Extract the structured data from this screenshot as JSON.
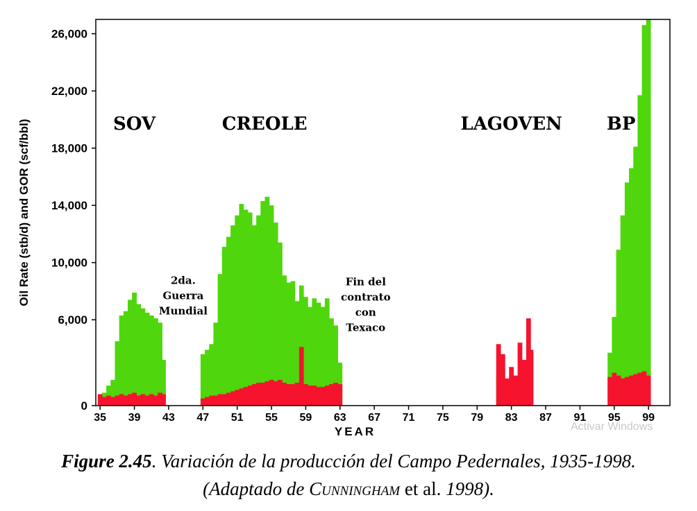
{
  "chart_data": {
    "type": "bar",
    "ylabel": "Oil Rate (stb/d) and GOR (scf/bbl)",
    "xlabel": "YEAR",
    "ylim": [
      0,
      27000
    ],
    "xlim": [
      34.5,
      101.5
    ],
    "yticks": [
      0,
      6000,
      10000,
      14000,
      18000,
      22000,
      26000
    ],
    "ytick_labels": [
      "0",
      "6,000",
      "10,000",
      "14,000",
      "18,000",
      "22,000",
      "26,000"
    ],
    "xticks": [
      35,
      39,
      43,
      47,
      51,
      55,
      59,
      63,
      67,
      71,
      75,
      79,
      83,
      87,
      91,
      95,
      99
    ],
    "colors": {
      "gor": "#4fd60c",
      "oil": "#f5132e"
    },
    "series": [
      {
        "name": "GOR (scf/bbl)",
        "points": [
          [
            35.0,
            700
          ],
          [
            35.5,
            900
          ],
          [
            36.0,
            1400
          ],
          [
            36.5,
            1800
          ],
          [
            37.0,
            4500
          ],
          [
            37.5,
            6300
          ],
          [
            38.0,
            6600
          ],
          [
            38.5,
            7400
          ],
          [
            39.0,
            7900
          ],
          [
            39.5,
            7100
          ],
          [
            40.0,
            6800
          ],
          [
            40.5,
            6500
          ],
          [
            41.0,
            6300
          ],
          [
            41.5,
            6100
          ],
          [
            42.0,
            5800
          ],
          [
            42.4,
            3200
          ],
          [
            47.0,
            3600
          ],
          [
            47.5,
            3900
          ],
          [
            48.0,
            4300
          ],
          [
            48.5,
            5800
          ],
          [
            49.0,
            9200
          ],
          [
            49.5,
            11100
          ],
          [
            50.0,
            11800
          ],
          [
            50.5,
            12600
          ],
          [
            51.0,
            13300
          ],
          [
            51.5,
            14100
          ],
          [
            52.0,
            13700
          ],
          [
            52.5,
            13500
          ],
          [
            53.0,
            12600
          ],
          [
            53.5,
            13300
          ],
          [
            54.0,
            14300
          ],
          [
            54.5,
            14600
          ],
          [
            55.0,
            14000
          ],
          [
            55.5,
            12800
          ],
          [
            56.0,
            11400
          ],
          [
            56.5,
            9100
          ],
          [
            57.0,
            8600
          ],
          [
            57.5,
            8700
          ],
          [
            58.0,
            7300
          ],
          [
            58.5,
            8400
          ],
          [
            59.0,
            7600
          ],
          [
            59.5,
            6900
          ],
          [
            60.0,
            7500
          ],
          [
            60.5,
            7200
          ],
          [
            61.0,
            6900
          ],
          [
            61.5,
            7500
          ],
          [
            62.0,
            6100
          ],
          [
            62.5,
            5600
          ],
          [
            63.0,
            3000
          ],
          [
            81.5,
            2100
          ],
          [
            82.0,
            2500
          ],
          [
            94.5,
            3700
          ],
          [
            95.0,
            6200
          ],
          [
            95.5,
            10900
          ],
          [
            96.0,
            13300
          ],
          [
            96.5,
            15600
          ],
          [
            97.0,
            16600
          ],
          [
            97.5,
            18100
          ],
          [
            98.0,
            21700
          ],
          [
            98.5,
            26600
          ],
          [
            99.0,
            27000
          ]
        ]
      },
      {
        "name": "Oil Rate (stb/d)",
        "points": [
          [
            35.0,
            800
          ],
          [
            35.5,
            600
          ],
          [
            36.0,
            700
          ],
          [
            36.5,
            600
          ],
          [
            37.0,
            700
          ],
          [
            37.5,
            800
          ],
          [
            38.0,
            700
          ],
          [
            38.5,
            800
          ],
          [
            39.0,
            900
          ],
          [
            39.5,
            700
          ],
          [
            40.0,
            800
          ],
          [
            40.5,
            700
          ],
          [
            41.0,
            800
          ],
          [
            41.5,
            700
          ],
          [
            42.0,
            900
          ],
          [
            42.4,
            800
          ],
          [
            47.0,
            500
          ],
          [
            47.5,
            600
          ],
          [
            48.0,
            700
          ],
          [
            48.5,
            700
          ],
          [
            49.0,
            800
          ],
          [
            49.5,
            800
          ],
          [
            50.0,
            900
          ],
          [
            50.5,
            1000
          ],
          [
            51.0,
            1100
          ],
          [
            51.5,
            1200
          ],
          [
            52.0,
            1300
          ],
          [
            52.5,
            1400
          ],
          [
            53.0,
            1500
          ],
          [
            53.5,
            1600
          ],
          [
            54.0,
            1600
          ],
          [
            54.5,
            1700
          ],
          [
            55.0,
            1800
          ],
          [
            55.5,
            1700
          ],
          [
            56.0,
            1800
          ],
          [
            56.5,
            1600
          ],
          [
            57.0,
            1500
          ],
          [
            57.5,
            1500
          ],
          [
            58.0,
            1600
          ],
          [
            58.5,
            4100
          ],
          [
            59.0,
            1500
          ],
          [
            59.5,
            1400
          ],
          [
            60.0,
            1400
          ],
          [
            60.5,
            1300
          ],
          [
            61.0,
            1300
          ],
          [
            61.5,
            1400
          ],
          [
            62.0,
            1500
          ],
          [
            62.5,
            1600
          ],
          [
            63.0,
            1500
          ],
          [
            81.5,
            4300
          ],
          [
            82.0,
            3600
          ],
          [
            82.5,
            1900
          ],
          [
            83.0,
            2700
          ],
          [
            83.5,
            2100
          ],
          [
            84.0,
            4400
          ],
          [
            84.5,
            3200
          ],
          [
            85.0,
            6100
          ],
          [
            85.3,
            3900
          ],
          [
            94.5,
            2000
          ],
          [
            95.0,
            2300
          ],
          [
            95.5,
            2100
          ],
          [
            96.0,
            1900
          ],
          [
            96.5,
            2000
          ],
          [
            97.0,
            2100
          ],
          [
            97.5,
            2200
          ],
          [
            98.0,
            2300
          ],
          [
            98.5,
            2400
          ],
          [
            99.0,
            2100
          ]
        ]
      }
    ],
    "annotations": {
      "companies": [
        {
          "text": "SOV",
          "x": 39.0,
          "y": 19300
        },
        {
          "text": "CREOLE",
          "x": 54.2,
          "y": 19300
        },
        {
          "text": "LAGOVEN",
          "x": 83.0,
          "y": 19300
        },
        {
          "text": "BP",
          "x": 95.8,
          "y": 19300
        }
      ],
      "notes": [
        {
          "lines": [
            "2da.",
            "Guerra",
            "Mundial"
          ],
          "x": 44.7,
          "y": 8500
        },
        {
          "lines": [
            "Fin del",
            "contrato",
            "con",
            "Texaco"
          ],
          "x": 66.0,
          "y": 8400
        }
      ]
    }
  },
  "watermark": "Activar Windows",
  "caption": {
    "figure_label": "Figure 2.45",
    "line1_text": ". Variación de la producción del Campo Pedernales, 1935-1998.",
    "line2_open": "(Adaptado de ",
    "author": "Cunningham",
    "etal": " et al. ",
    "year": "1998",
    "line2_close": ")."
  }
}
